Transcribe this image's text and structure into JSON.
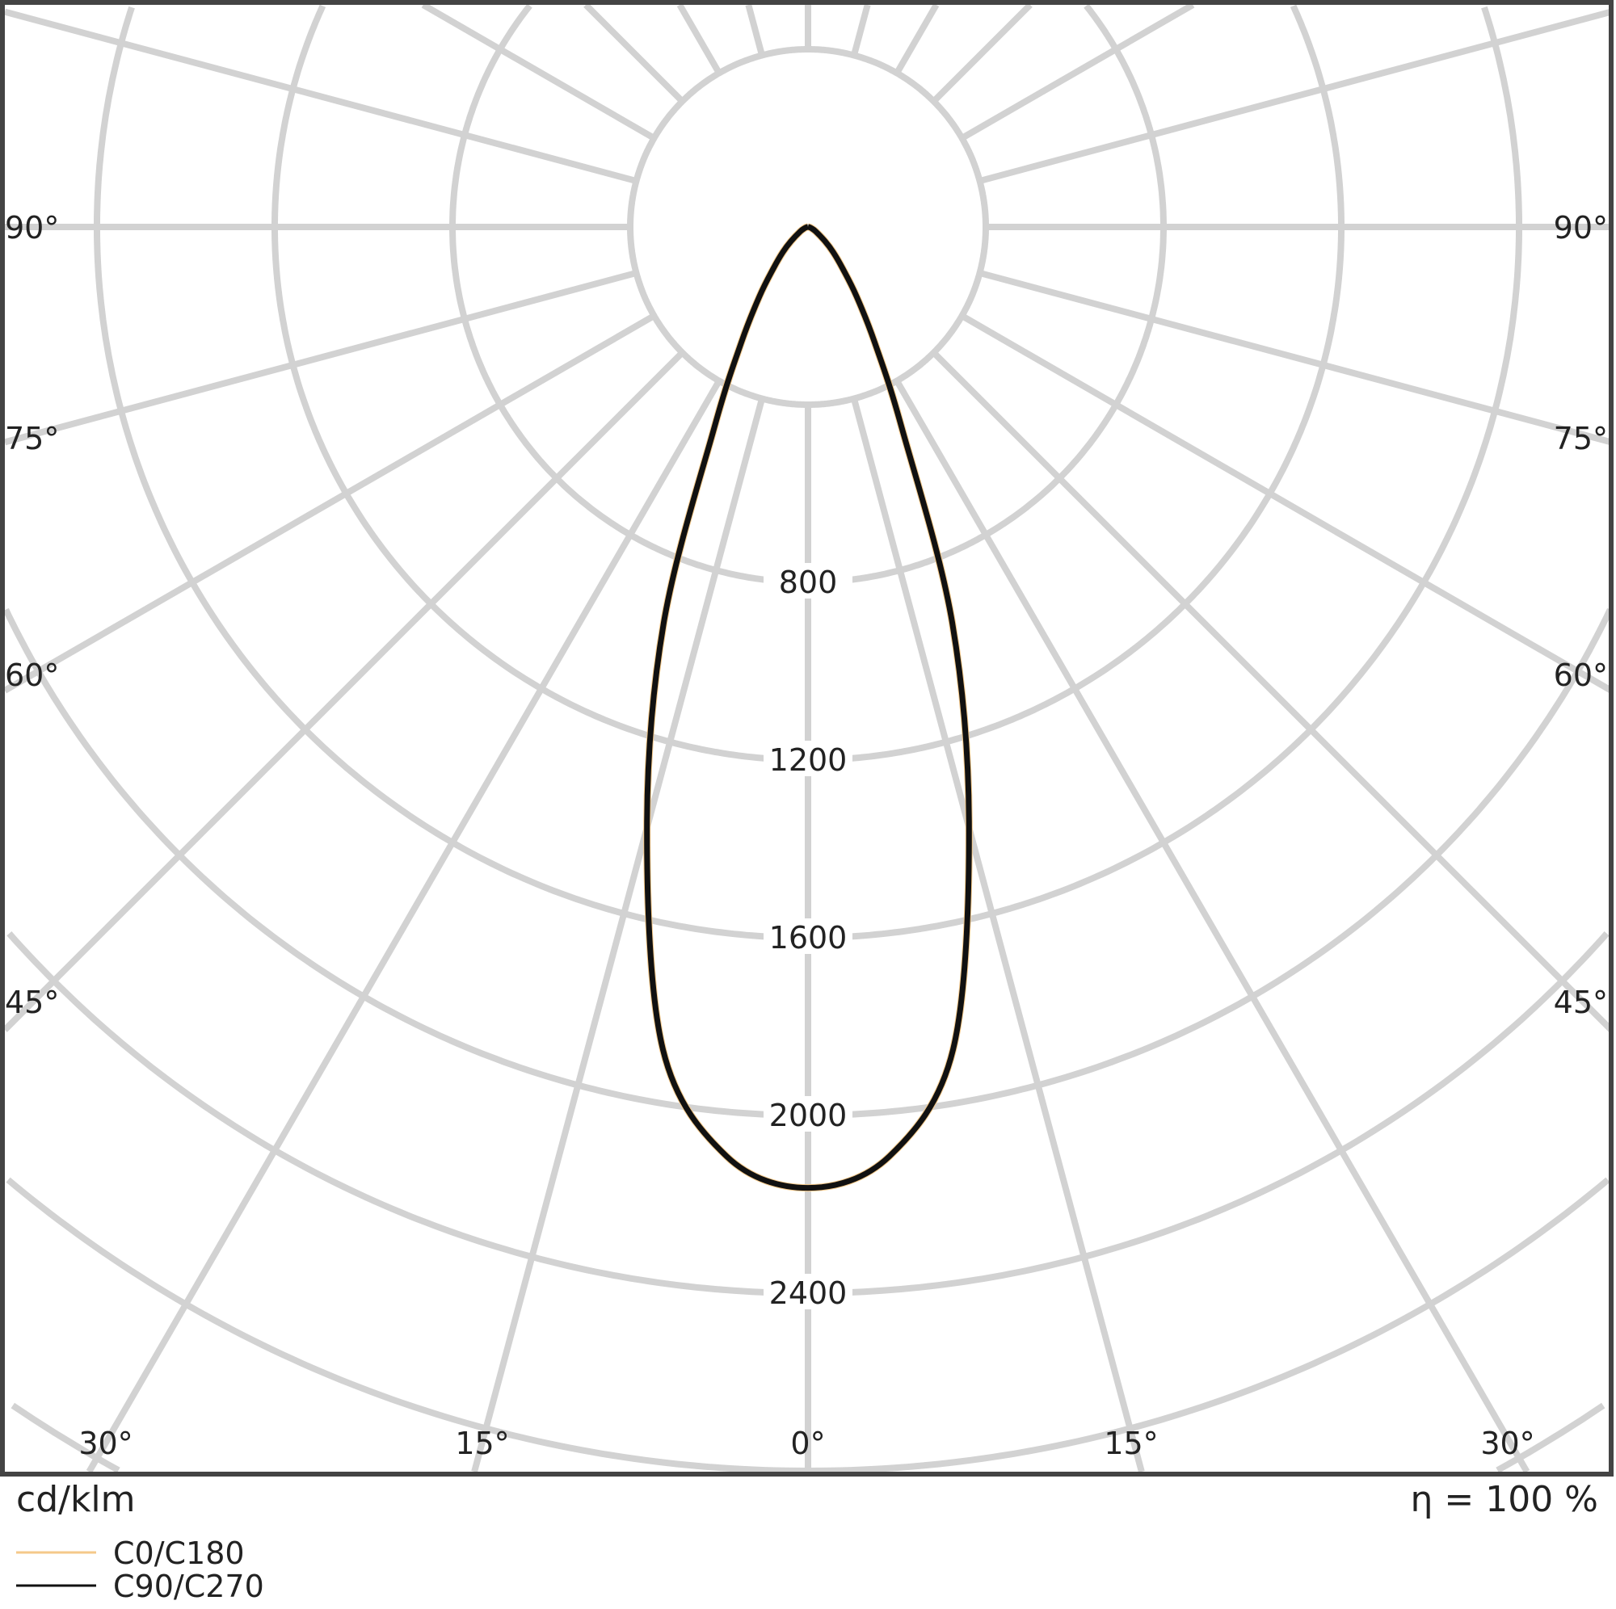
{
  "chart_data": {
    "type": "polar",
    "unit_label": "cd/klm",
    "efficiency_label": "η = 100 %",
    "radial_ticks": [
      400,
      800,
      1200,
      1600,
      2000,
      2400,
      2800,
      3200,
      3600,
      4000
    ],
    "radial_tick_labels": [
      "800",
      "1200",
      "1600",
      "2000",
      "2400"
    ],
    "angle_labels_left": [
      "90°",
      "75°",
      "60°",
      "45°"
    ],
    "angle_labels_right": [
      "90°",
      "75°",
      "60°",
      "45°"
    ],
    "angle_labels_bottom": [
      "30°",
      "15°",
      "0°",
      "15°",
      "30°"
    ],
    "grid": true,
    "angles_deg": [
      0,
      5,
      10,
      15,
      20,
      25,
      30,
      35,
      40,
      45,
      50,
      60,
      70,
      80,
      90
    ],
    "series": [
      {
        "name": "C0/C180",
        "color": "#f5c98a",
        "values": [
          2163,
          2100,
          1880,
          1400,
          950,
          500,
          300,
          190,
          120,
          80,
          50,
          20,
          8,
          3,
          0
        ]
      },
      {
        "name": "C90/C270",
        "color": "#111111",
        "values": [
          2163,
          2100,
          1880,
          1400,
          950,
          500,
          300,
          190,
          120,
          80,
          50,
          20,
          8,
          3,
          0
        ]
      }
    ],
    "legend_placement": "bottom-left"
  }
}
